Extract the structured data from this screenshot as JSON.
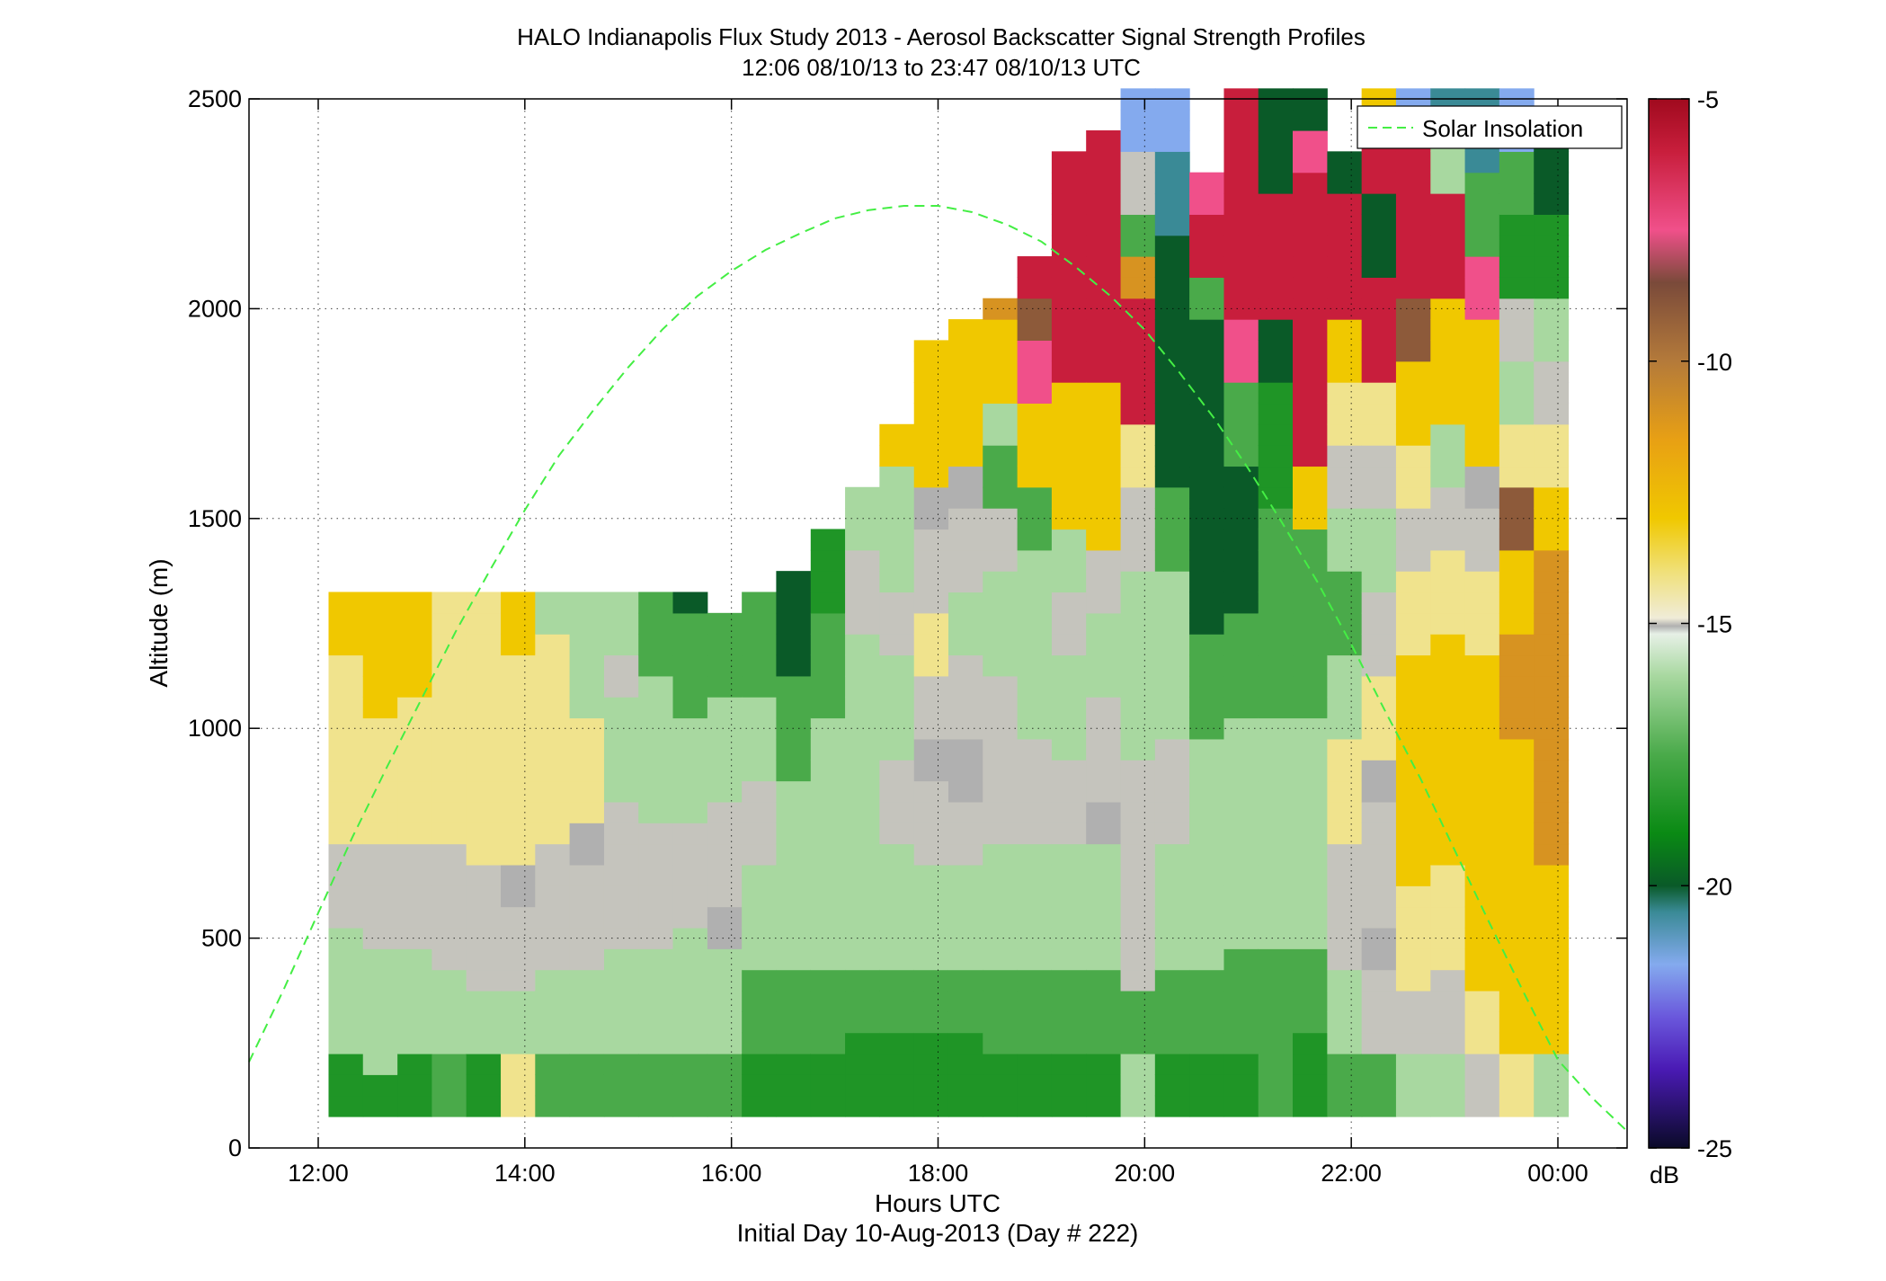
{
  "chart_data": {
    "type": "heatmap",
    "title": "HALO Indianapolis Flux Study 2013 - Aerosol Backscatter Signal Strength Profiles",
    "subtitle": "12:06 08/10/13 to 23:47 08/10/13  UTC",
    "xlabel": "Hours UTC",
    "xlabel2": "Initial Day 10-Aug-2013 (Day # 222)",
    "ylabel": "Altitude (m)",
    "xlim": [
      11.33,
      24.67
    ],
    "ylim": [
      0,
      2500
    ],
    "x_ticks": [
      12,
      14,
      16,
      18,
      20,
      22,
      24
    ],
    "x_tick_labels": [
      "12:00",
      "14:00",
      "16:00",
      "18:00",
      "20:00",
      "22:00",
      "00:00"
    ],
    "y_ticks": [
      0,
      500,
      1000,
      1500,
      2000,
      2500
    ],
    "y_tick_labels": [
      "0",
      "500",
      "1000",
      "1500",
      "2000",
      "2500"
    ],
    "grid": true,
    "colorbar": {
      "label": "dB",
      "range": [
        -25,
        -5
      ],
      "ticks": [
        -5,
        -10,
        -15,
        -20,
        -25
      ],
      "tick_labels": [
        "-5",
        "-10",
        "-15",
        "-20",
        "-25"
      ],
      "stops": [
        {
          "value": -25,
          "color": "#0a0a28"
        },
        {
          "value": -23.5,
          "color": "#4a1ab4"
        },
        {
          "value": -22.5,
          "color": "#6a58dc"
        },
        {
          "value": -21.5,
          "color": "#84aaee"
        },
        {
          "value": -20.5,
          "color": "#3a8a96"
        },
        {
          "value": -20,
          "color": "#0a5a28"
        },
        {
          "value": -19,
          "color": "#0a8a14"
        },
        {
          "value": -17.5,
          "color": "#4aaa4a"
        },
        {
          "value": -16,
          "color": "#a8d8a0"
        },
        {
          "value": -15.2,
          "color": "#e6f0e6"
        },
        {
          "value": -15.05,
          "color": "#b0b0b0"
        },
        {
          "value": -14.9,
          "color": "#f0ecd8"
        },
        {
          "value": -14,
          "color": "#f0e078"
        },
        {
          "value": -13,
          "color": "#f0c800"
        },
        {
          "value": -11.5,
          "color": "#e8a014"
        },
        {
          "value": -10,
          "color": "#b47a3a"
        },
        {
          "value": -8.5,
          "color": "#7a4a3a"
        },
        {
          "value": -7.5,
          "color": "#f0508a"
        },
        {
          "value": -6,
          "color": "#c81e3c"
        },
        {
          "value": -5,
          "color": "#a00a1e"
        }
      ]
    },
    "heatmap": {
      "x_start": 12.1,
      "x_step": 0.333,
      "y_bottom": 75,
      "y_step": 50,
      "n_rows": 49,
      "legend_key": {
        "R": "-6",
        "P": "-7.5",
        "B": "-9",
        "O": "-11",
        "Y": "-13",
        "y": "-14.2",
        "c": "-15",
        "g": "-15.05",
        "l": "-16",
        "m": "-17.5",
        "G": "-18.5",
        "D": "-20",
        "T": "-20.5",
        "S": "-21.5",
        "V": "-22.8",
        "U": "-23.5",
        ".": "none"
      },
      "columns": [
        {
          "x": 12.1,
          "top": 1325,
          "runs": "G3l6c4y9Y4O2y4c4D6m2G2B2V4U3"
        },
        {
          "x": 12.433,
          "top": 1325,
          "runs": "G2l6c5y6Y6y3c6D4G6m3V4U2"
        },
        {
          "x": 12.767,
          "top": 1325,
          "runs": "G3l5c5y7Y5y3c5m2G8D2V5U2"
        },
        {
          "x": 13.1,
          "top": 1325,
          "runs": "m3l4c6y10y5c5D3G6m2V5U3"
        },
        {
          "x": 13.433,
          "top": 1325,
          "runs": "G3l3c6y8y5c3l4G4D4m3l2V5U3"
        },
        {
          "x": 13.767,
          "top": 1325,
          "runs": "y3l3c4g2y10Y2Y3c3l2G8m3G4V3U2"
        },
        {
          "x": 14.1,
          "top": 1325,
          "runs": "m3l4c6y6y4l3c3G6m3V5U5"
        },
        {
          "x": 14.433,
          "top": 1325,
          "runs": "m3l4c5g2y5l6c2m3G8m2V5U3V3"
        },
        {
          "x": 14.767,
          "top": 1325,
          "runs": "m3l5c7l5c2l6D7m3V4U4V4U2"
        },
        {
          "x": 15.1,
          "top": 1325,
          "runs": "m3l5c6l7m4D8m3V6S2V4"
        },
        {
          "x": 15.433,
          "top": 1325,
          "runs": "m3l6c5l5m5D8D4V3U3V4S2"
        },
        {
          "x": 15.767,
          "top": 1275,
          "runs": "m3l5g2c5l5m5D8S3V3S2V2U2V3U2"
        },
        {
          "x": 16.1,
          "top": 1325,
          "runs": "G3m4l5c4l4m5D6S3T4S4V4U3"
        },
        {
          "x": 16.433,
          "top": 1375,
          "runs": "G3m4l5l4m5D8m3S3T4S3V4U2"
        },
        {
          "x": 16.767,
          "top": 1450,
          "runs": "G3m4l6l6m5G5m3S4T4S3V4U2"
        },
        {
          "x": 17.1,
          "top": 1550,
          "runs": "G4m3l6l5l5c4l3Y3P3R7R4G2V5"
        },
        {
          "x": 17.433,
          "top": 1700,
          "runs": "G4m3l6c4l5c3l3l3Y4Y3R9R6B2S2"
        },
        {
          "x": 17.767,
          "top": 1900,
          "runs": "G4m3l5c4g2c3y3c4g2Y4Y4B2R6R8c2R3"
        },
        {
          "x": 18.1,
          "top": 1975,
          "runs": "G4m3l5c3g3c4l3c4g2Y4Y3O2R8R10"
        },
        {
          "x": 18.433,
          "top": 2025,
          "runs": "G3m4l6c5c3l5c3m3l2Y4O3P2R10R6V2"
        },
        {
          "x": 18.767,
          "top": 2125,
          "runs": "G3m4l6c5l5l4m3Y4P3B2R10R9O2"
        },
        {
          "x": 19.1,
          "top": 2350,
          "runs": "G3m4l6c4l5c3l3Y4Y3R6R10R9R8"
        },
        {
          "x": 19.433,
          "top": 2425,
          "runs": "G3m4l6g2c5l4c3Y4Y4R5R8Y2R10Y3D3"
        },
        {
          "x": 19.767,
          "top": 2500,
          "runs": "l3m3c6c5l5l4c4y3R6O2m2c3S3V4U5"
        },
        {
          "x": 20.1,
          "top": 2500,
          "runs": "G3m4l6c5l4l4m4D7D5T4S4V4U3"
        },
        {
          "x": 20.433,
          "top": 2300,
          "runs": "G3m4l6l5m5D7D8m2R3P2R3O2R2Y2R3"
        },
        {
          "x": 20.767,
          "top": 2500,
          "runs": "G3m5l6l5m5D7m4P3R6R8P2D4S2V3"
        },
        {
          "x": 21.1,
          "top": 2500,
          "runs": "m4m4l6l5m5m5G6D3R6D8m2y3S3l2m2"
        },
        {
          "x": 21.433,
          "top": 2500,
          "runs": "G4m4l6l5m5m4Y3R6R8P2D3B2R2D3O3"
        },
        {
          "x": 21.767,
          "top": 2350,
          "runs": "m3l4c6y5l4m4l3c3y3Y3R6D5m4l2S2"
        },
        {
          "x": 22.1,
          "top": 2500,
          "runs": "m3c4g2c6g2y4c4l4c3y3R5D4R4Y3B2R4"
        },
        {
          "x": 22.433,
          "top": 2500,
          "runs": "l3c3y5Y6Y5y4c3y3Y4B3R4R5S4T3D2"
        },
        {
          "x": 22.767,
          "top": 2500,
          "runs": "l3c4y5Y6Y5y4c3l3Y3Y3R5l4T4S3V4"
        },
        {
          "x": 23.1,
          "top": 2500,
          "runs": "c3y3Y5Y6Y5y4c3g2Y3Y4P3m4T4S3V4"
        },
        {
          "x": 23.433,
          "top": 2500,
          "runs": "y3Y4Y6Y5O5Y4B3y3l3c3G4m3S5V4"
        },
        {
          "x": 23.767,
          "top": 2450,
          "runs": "l3Y4Y5O6O5O4Y3y3c3l3G4D4S4V3"
        }
      ]
    },
    "series": [
      {
        "name": "Solar Insolation",
        "type": "line",
        "color": "#44ee44",
        "style": "dashed",
        "x": [
          11.33,
          11.67,
          12.0,
          12.33,
          12.67,
          13.0,
          13.33,
          13.67,
          14.0,
          14.33,
          14.67,
          15.0,
          15.33,
          15.67,
          16.0,
          16.33,
          16.67,
          17.0,
          17.33,
          17.67,
          18.0,
          18.33,
          18.67,
          19.0,
          19.33,
          19.67,
          20.0,
          20.33,
          20.67,
          21.0,
          21.33,
          21.67,
          22.0,
          22.33,
          22.67,
          23.0,
          23.33,
          23.67,
          24.0,
          24.33,
          24.67
        ],
        "y": [
          205,
          380,
          560,
          740,
          910,
          1070,
          1230,
          1380,
          1520,
          1650,
          1760,
          1860,
          1950,
          2030,
          2090,
          2140,
          2180,
          2215,
          2235,
          2245,
          2245,
          2230,
          2200,
          2160,
          2100,
          2030,
          1950,
          1850,
          1740,
          1620,
          1490,
          1350,
          1200,
          1040,
          880,
          710,
          540,
          370,
          210,
          120,
          40
        ]
      }
    ],
    "legend": {
      "placement": "top-right",
      "entries": [
        "Solar Insolation"
      ]
    }
  }
}
